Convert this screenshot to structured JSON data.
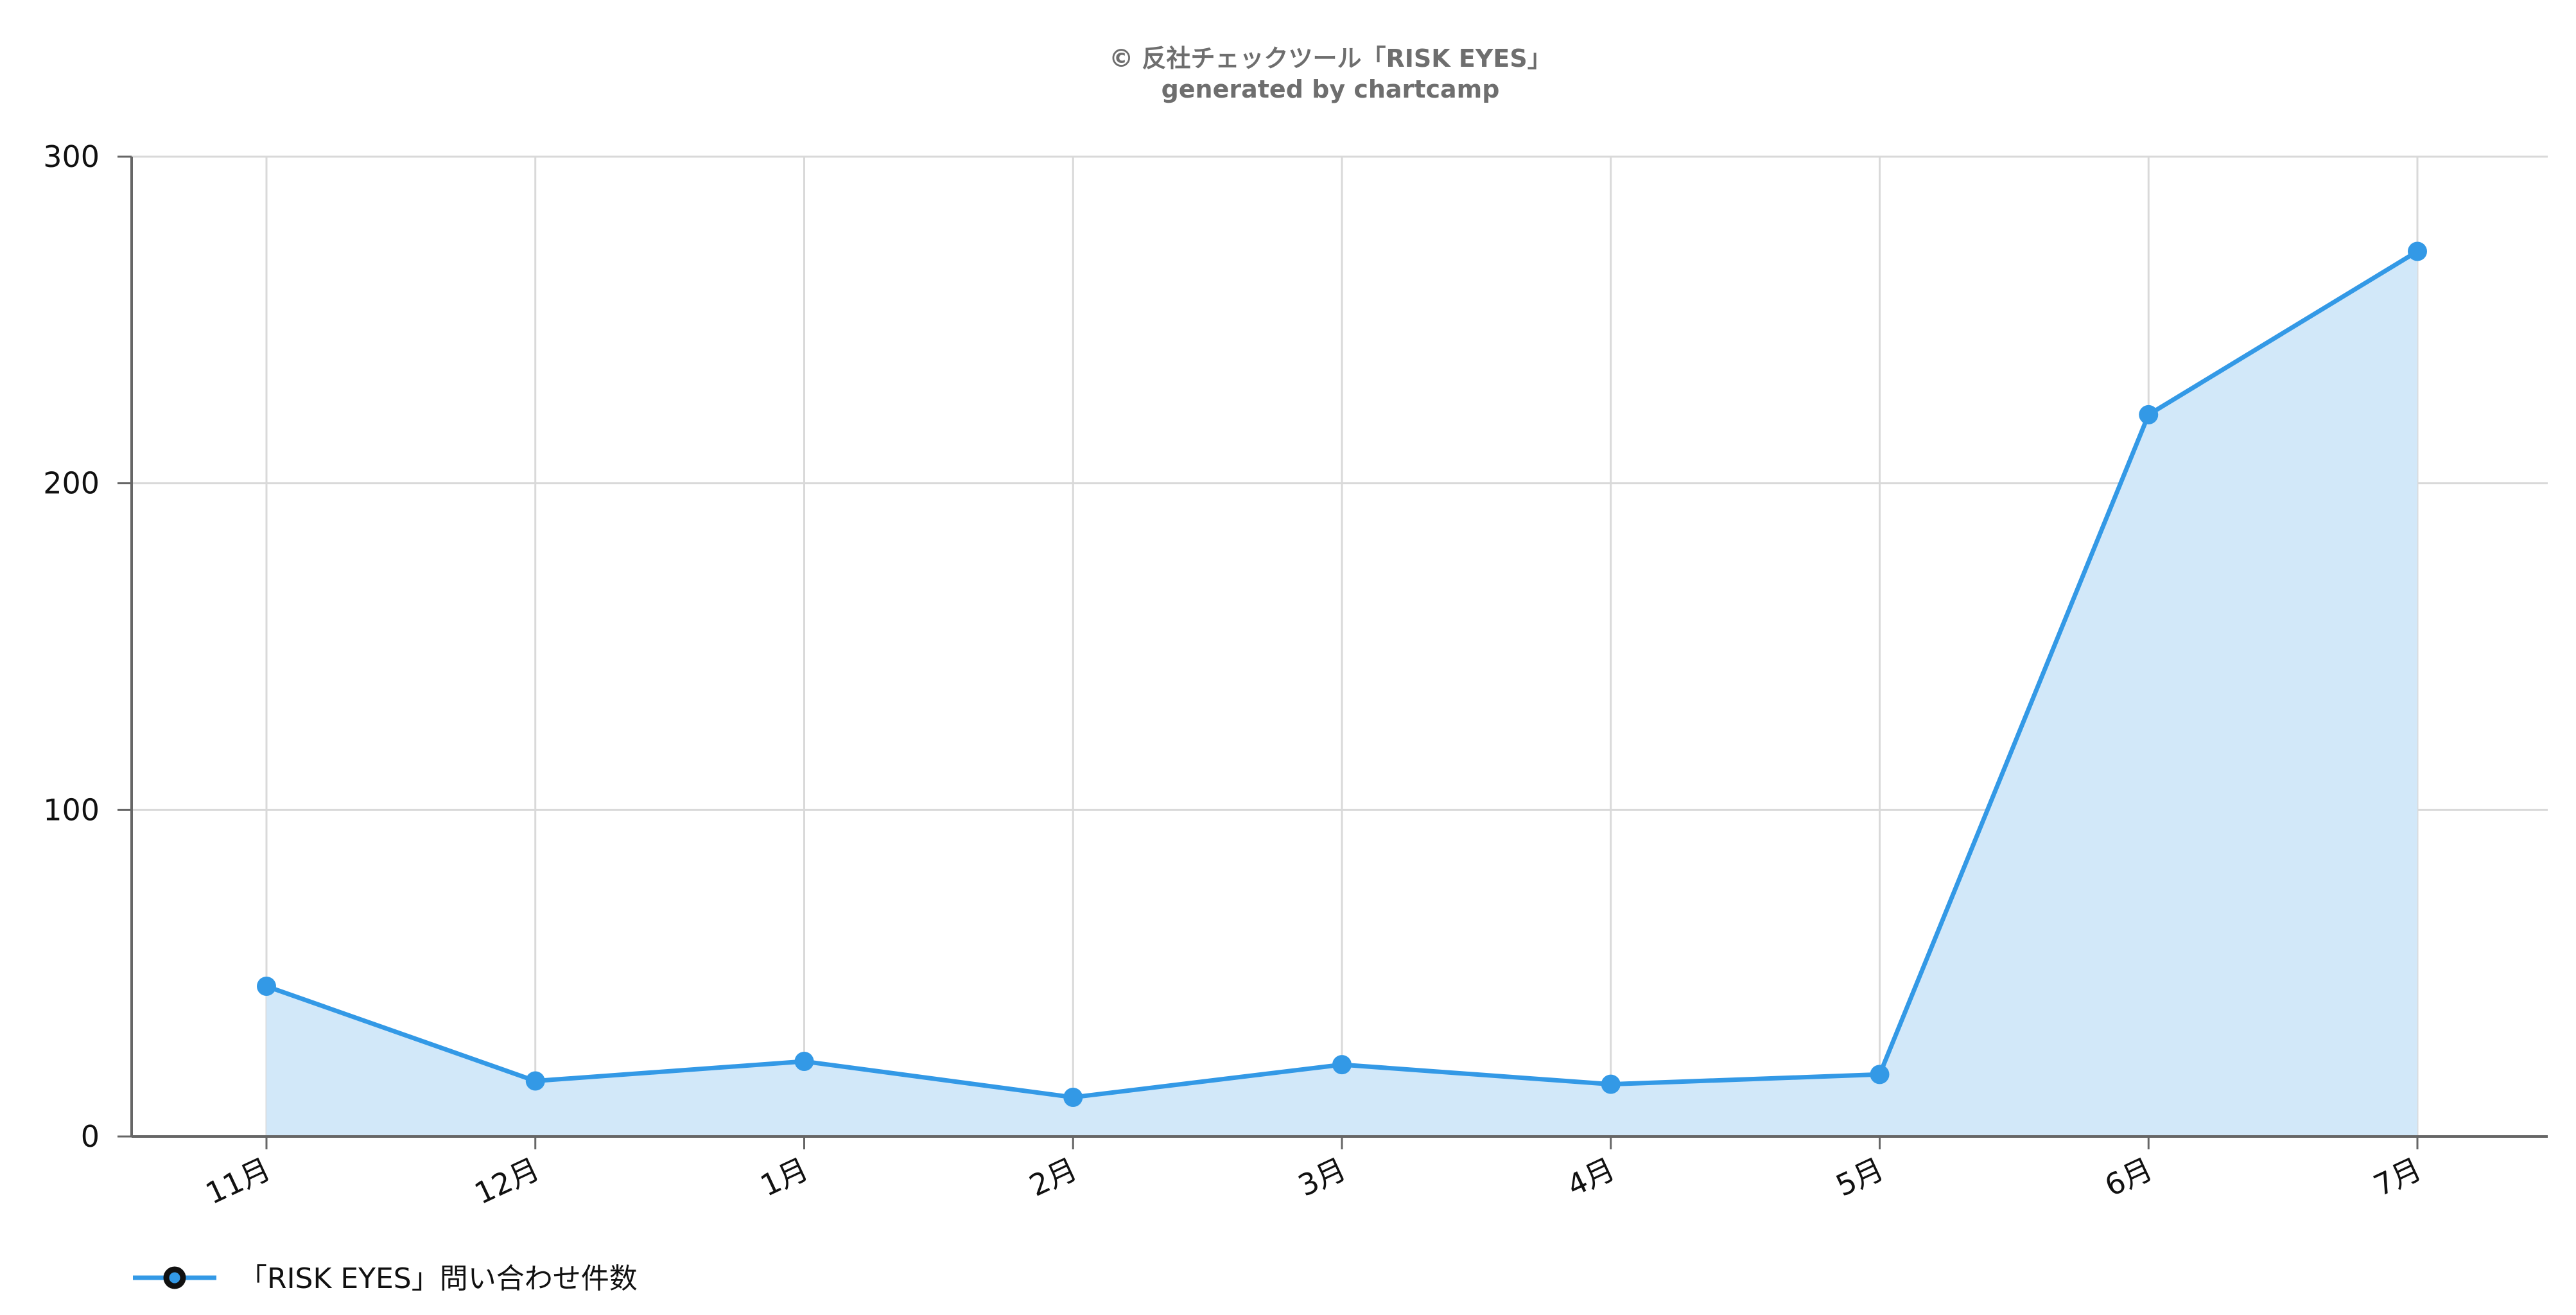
{
  "credit": {
    "line1": "© 反社チェックツール「RISK EYES」",
    "line2": "generated by chartcamp"
  },
  "colors": {
    "series_line": "#3399e6",
    "series_fill": "#d2e8f9",
    "grid": "#d9d9d9",
    "axis": "#666666",
    "legend_marker_outline": "#111111"
  },
  "legend": {
    "placement": "bottom-left",
    "label": "「RISK EYES」問い合わせ件数"
  },
  "chart_data": {
    "type": "area",
    "title": "",
    "xlabel": "",
    "ylabel": "",
    "categories": [
      "11月",
      "12月",
      "1月",
      "2月",
      "3月",
      "4月",
      "5月",
      "6月",
      "7月"
    ],
    "series": [
      {
        "name": "「RISK EYES」問い合わせ件数",
        "values": [
          46,
          17,
          23,
          12,
          22,
          16,
          19,
          221,
          271
        ]
      }
    ],
    "ylim": [
      0,
      300
    ],
    "yticks": [
      "0",
      "100",
      "200",
      "300"
    ],
    "grid": true,
    "markers": true
  }
}
